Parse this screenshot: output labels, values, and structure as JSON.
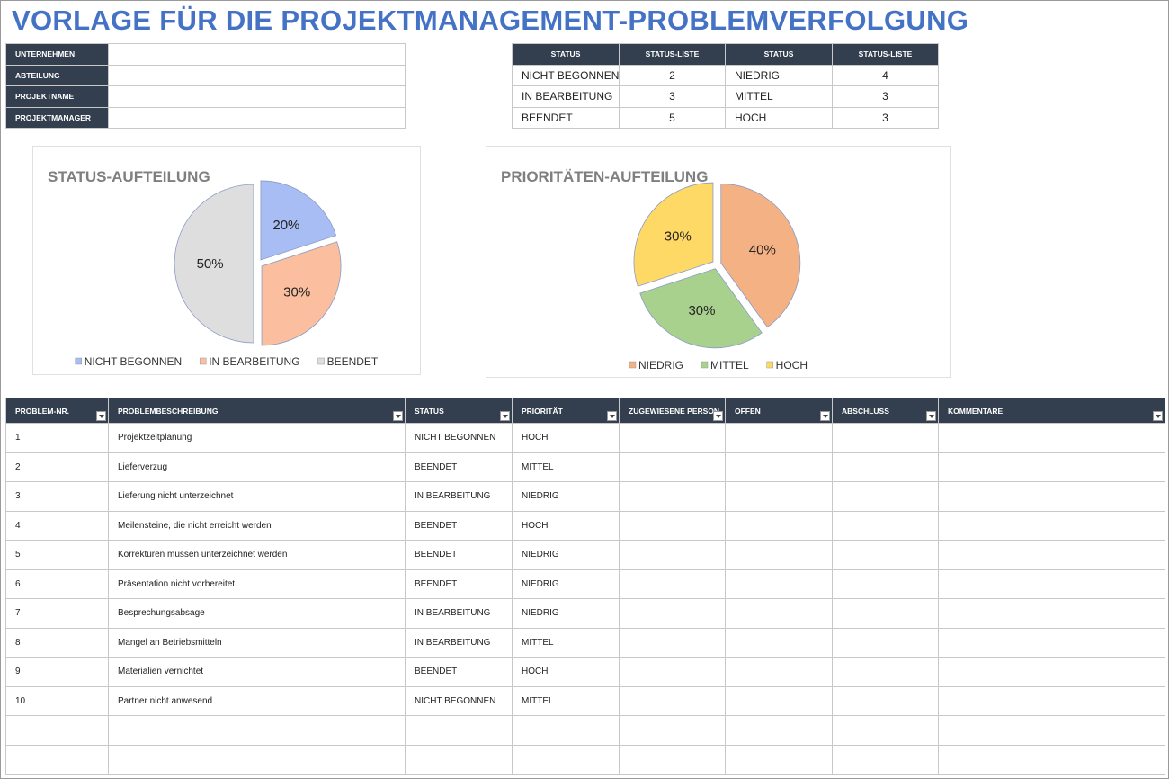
{
  "title": "VORLAGE FÜR DIE PROJEKTMANAGEMENT-PROBLEMVERFOLGUNG",
  "info": {
    "labels": [
      "UNTERNEHMEN",
      "ABTEILUNG",
      "PROJEKTNAME",
      "PROJEKTMANAGER"
    ]
  },
  "summary": {
    "headers": [
      "STATUS",
      "STATUS-LISTE",
      "STATUS",
      "STATUS-LISTE"
    ],
    "rows": [
      [
        "NICHT BEGONNEN",
        2,
        "NIEDRIG",
        4
      ],
      [
        "IN BEARBEITUNG",
        3,
        "MITTEL",
        3
      ],
      [
        "BEENDET",
        5,
        "HOCH",
        3
      ]
    ]
  },
  "chart_data": [
    {
      "type": "pie",
      "title": "STATUS-AUFTEILUNG",
      "categories": [
        "NICHT BEGONNEN",
        "IN BEARBEITUNG",
        "BEENDET"
      ],
      "values": [
        20,
        30,
        50
      ],
      "value_labels": [
        "20%",
        "30%",
        "50%"
      ],
      "colors": [
        "#a9bdf5",
        "#fbbf9f",
        "#dedede"
      ]
    },
    {
      "type": "pie",
      "title": "PRIORITÄTEN-AUFTEILUNG",
      "categories": [
        "NIEDRIG",
        "MITTEL",
        "HOCH"
      ],
      "values": [
        40,
        30,
        30
      ],
      "value_labels": [
        "40%",
        "30%",
        "30%"
      ],
      "colors": [
        "#f4b183",
        "#a9d18e",
        "#ffd966"
      ]
    }
  ],
  "issues": {
    "headers": [
      "PROBLEM-NR.",
      "PROBLEMBESCHREIBUNG",
      "STATUS",
      "PRIORITÄT",
      "ZUGEWIESENE PERSON",
      "OFFEN",
      "ABSCHLUSS",
      "KOMMENTARE"
    ],
    "rows": [
      [
        1,
        "Projektzeitplanung",
        "NICHT BEGONNEN",
        "HOCH"
      ],
      [
        2,
        "Lieferverzug",
        "BEENDET",
        "MITTEL"
      ],
      [
        3,
        "Lieferung nicht unterzeichnet",
        "IN BEARBEITUNG",
        "NIEDRIG"
      ],
      [
        4,
        "Meilensteine, die nicht erreicht werden",
        "BEENDET",
        "HOCH"
      ],
      [
        5,
        "Korrekturen müssen unterzeichnet werden",
        "BEENDET",
        "NIEDRIG"
      ],
      [
        6,
        "Präsentation nicht vorbereitet",
        "BEENDET",
        "NIEDRIG"
      ],
      [
        7,
        "Besprechungsabsage",
        "IN BEARBEITUNG",
        "NIEDRIG"
      ],
      [
        8,
        "Mangel an Betriebsmitteln",
        "IN BEARBEITUNG",
        "MITTEL"
      ],
      [
        9,
        "Materialien vernichtet",
        "BEENDET",
        "HOCH"
      ],
      [
        10,
        "Partner nicht anwesend",
        "NICHT BEGONNEN",
        "MITTEL"
      ]
    ]
  }
}
